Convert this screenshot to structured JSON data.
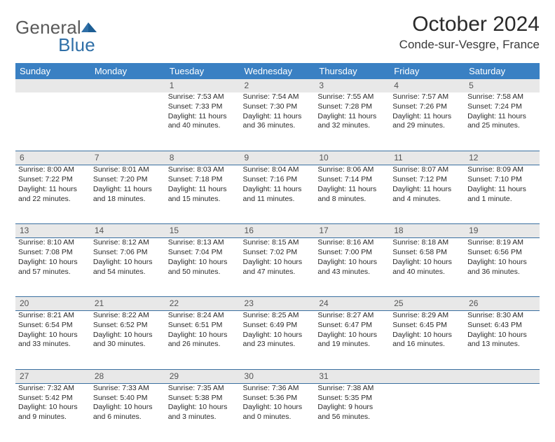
{
  "brand": {
    "word1": "General",
    "word2": "Blue"
  },
  "title": "October 2024",
  "location": "Conde-sur-Vesgre, France",
  "colors": {
    "header_bg": "#3a80c3",
    "header_text": "#ffffff",
    "daynum_bg": "#e8e8e8",
    "daynum_text": "#555555",
    "rule": "#3a6fa0",
    "body_text": "#2a2a2a",
    "logo_gray": "#5a5a5a",
    "logo_blue": "#2f6fa7"
  },
  "day_headers": [
    "Sunday",
    "Monday",
    "Tuesday",
    "Wednesday",
    "Thursday",
    "Friday",
    "Saturday"
  ],
  "weeks": [
    [
      null,
      null,
      {
        "n": "1",
        "sunrise": "7:53 AM",
        "sunset": "7:33 PM",
        "dl": "11 hours and 40 minutes."
      },
      {
        "n": "2",
        "sunrise": "7:54 AM",
        "sunset": "7:30 PM",
        "dl": "11 hours and 36 minutes."
      },
      {
        "n": "3",
        "sunrise": "7:55 AM",
        "sunset": "7:28 PM",
        "dl": "11 hours and 32 minutes."
      },
      {
        "n": "4",
        "sunrise": "7:57 AM",
        "sunset": "7:26 PM",
        "dl": "11 hours and 29 minutes."
      },
      {
        "n": "5",
        "sunrise": "7:58 AM",
        "sunset": "7:24 PM",
        "dl": "11 hours and 25 minutes."
      }
    ],
    [
      {
        "n": "6",
        "sunrise": "8:00 AM",
        "sunset": "7:22 PM",
        "dl": "11 hours and 22 minutes."
      },
      {
        "n": "7",
        "sunrise": "8:01 AM",
        "sunset": "7:20 PM",
        "dl": "11 hours and 18 minutes."
      },
      {
        "n": "8",
        "sunrise": "8:03 AM",
        "sunset": "7:18 PM",
        "dl": "11 hours and 15 minutes."
      },
      {
        "n": "9",
        "sunrise": "8:04 AM",
        "sunset": "7:16 PM",
        "dl": "11 hours and 11 minutes."
      },
      {
        "n": "10",
        "sunrise": "8:06 AM",
        "sunset": "7:14 PM",
        "dl": "11 hours and 8 minutes."
      },
      {
        "n": "11",
        "sunrise": "8:07 AM",
        "sunset": "7:12 PM",
        "dl": "11 hours and 4 minutes."
      },
      {
        "n": "12",
        "sunrise": "8:09 AM",
        "sunset": "7:10 PM",
        "dl": "11 hours and 1 minute."
      }
    ],
    [
      {
        "n": "13",
        "sunrise": "8:10 AM",
        "sunset": "7:08 PM",
        "dl": "10 hours and 57 minutes."
      },
      {
        "n": "14",
        "sunrise": "8:12 AM",
        "sunset": "7:06 PM",
        "dl": "10 hours and 54 minutes."
      },
      {
        "n": "15",
        "sunrise": "8:13 AM",
        "sunset": "7:04 PM",
        "dl": "10 hours and 50 minutes."
      },
      {
        "n": "16",
        "sunrise": "8:15 AM",
        "sunset": "7:02 PM",
        "dl": "10 hours and 47 minutes."
      },
      {
        "n": "17",
        "sunrise": "8:16 AM",
        "sunset": "7:00 PM",
        "dl": "10 hours and 43 minutes."
      },
      {
        "n": "18",
        "sunrise": "8:18 AM",
        "sunset": "6:58 PM",
        "dl": "10 hours and 40 minutes."
      },
      {
        "n": "19",
        "sunrise": "8:19 AM",
        "sunset": "6:56 PM",
        "dl": "10 hours and 36 minutes."
      }
    ],
    [
      {
        "n": "20",
        "sunrise": "8:21 AM",
        "sunset": "6:54 PM",
        "dl": "10 hours and 33 minutes."
      },
      {
        "n": "21",
        "sunrise": "8:22 AM",
        "sunset": "6:52 PM",
        "dl": "10 hours and 30 minutes."
      },
      {
        "n": "22",
        "sunrise": "8:24 AM",
        "sunset": "6:51 PM",
        "dl": "10 hours and 26 minutes."
      },
      {
        "n": "23",
        "sunrise": "8:25 AM",
        "sunset": "6:49 PM",
        "dl": "10 hours and 23 minutes."
      },
      {
        "n": "24",
        "sunrise": "8:27 AM",
        "sunset": "6:47 PM",
        "dl": "10 hours and 19 minutes."
      },
      {
        "n": "25",
        "sunrise": "8:29 AM",
        "sunset": "6:45 PM",
        "dl": "10 hours and 16 minutes."
      },
      {
        "n": "26",
        "sunrise": "8:30 AM",
        "sunset": "6:43 PM",
        "dl": "10 hours and 13 minutes."
      }
    ],
    [
      {
        "n": "27",
        "sunrise": "7:32 AM",
        "sunset": "5:42 PM",
        "dl": "10 hours and 9 minutes."
      },
      {
        "n": "28",
        "sunrise": "7:33 AM",
        "sunset": "5:40 PM",
        "dl": "10 hours and 6 minutes."
      },
      {
        "n": "29",
        "sunrise": "7:35 AM",
        "sunset": "5:38 PM",
        "dl": "10 hours and 3 minutes."
      },
      {
        "n": "30",
        "sunrise": "7:36 AM",
        "sunset": "5:36 PM",
        "dl": "10 hours and 0 minutes."
      },
      {
        "n": "31",
        "sunrise": "7:38 AM",
        "sunset": "5:35 PM",
        "dl": "9 hours and 56 minutes."
      },
      null,
      null
    ]
  ],
  "labels": {
    "sunrise": "Sunrise: ",
    "sunset": "Sunset: ",
    "daylight": "Daylight: "
  }
}
